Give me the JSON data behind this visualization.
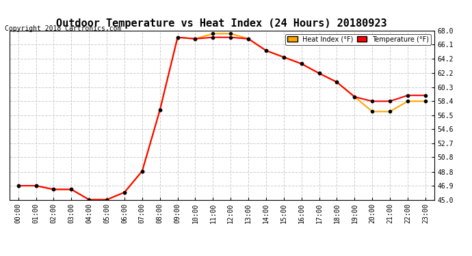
{
  "title": "Outdoor Temperature vs Heat Index (24 Hours) 20180923",
  "copyright": "Copyright 2018 Cartronics.com",
  "heat_index_label": "Heat Index (°F)",
  "temp_label": "Temperature (°F)",
  "heat_index_color": "#FFA500",
  "temp_color": "#FF0000",
  "marker_color": "#000000",
  "background_color": "#FFFFFF",
  "grid_color": "#CCCCCC",
  "ylim": [
    45.0,
    68.0
  ],
  "yticks": [
    45.0,
    46.9,
    48.8,
    50.8,
    52.7,
    54.6,
    56.5,
    58.4,
    60.3,
    62.2,
    64.2,
    66.1,
    68.0
  ],
  "hours": [
    "00:00",
    "01:00",
    "02:00",
    "03:00",
    "04:00",
    "05:00",
    "06:00",
    "07:00",
    "08:00",
    "09:00",
    "10:00",
    "11:00",
    "12:00",
    "13:00",
    "14:00",
    "15:00",
    "16:00",
    "17:00",
    "18:00",
    "19:00",
    "20:00",
    "21:00",
    "22:00",
    "23:00"
  ],
  "temperature": [
    46.9,
    46.9,
    46.4,
    46.4,
    45.0,
    45.0,
    46.0,
    48.9,
    57.2,
    67.1,
    66.9,
    67.1,
    67.1,
    66.9,
    65.3,
    64.4,
    63.5,
    62.2,
    61.0,
    59.0,
    58.4,
    58.4,
    59.2,
    59.2
  ],
  "heat_index": [
    46.9,
    46.9,
    46.4,
    46.4,
    45.0,
    45.0,
    46.0,
    48.9,
    57.2,
    67.1,
    66.9,
    67.6,
    67.6,
    66.9,
    65.3,
    64.4,
    63.5,
    62.2,
    61.0,
    59.0,
    57.0,
    57.0,
    58.4,
    58.4
  ],
  "legend_box_heat_color": "#FFA500",
  "legend_box_temp_color": "#FF0000",
  "legend_text_color": "#000000"
}
